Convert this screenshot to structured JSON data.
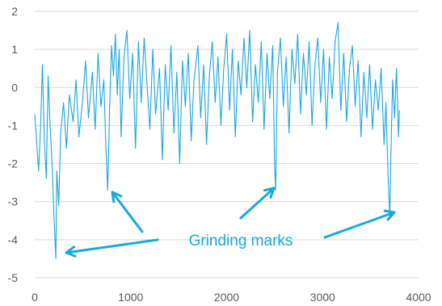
{
  "chart_data": {
    "type": "line",
    "title": "",
    "xlabel": "",
    "ylabel": "",
    "xlim": [
      0,
      4000
    ],
    "ylim": [
      -5,
      2
    ],
    "x_ticks": [
      0,
      1000,
      2000,
      3000,
      4000
    ],
    "y_ticks": [
      2,
      1,
      0,
      -1,
      -2,
      -3,
      -4,
      -5
    ],
    "x_tick_labels": [
      "0",
      "1000",
      "2000",
      "3000",
      "4000"
    ],
    "y_tick_labels": [
      "2",
      "1",
      "0",
      "-1",
      "-2",
      "-3",
      "-4",
      "-5"
    ],
    "grid": true,
    "legend": "none",
    "series": [
      {
        "color": "#1aa7dc",
        "points": [
          [
            0,
            -0.7
          ],
          [
            40,
            -2.2
          ],
          [
            60,
            -1.1
          ],
          [
            80,
            0.6
          ],
          [
            100,
            -1.4
          ],
          [
            120,
            -2.4
          ],
          [
            140,
            0.3
          ],
          [
            160,
            -1.0
          ],
          [
            180,
            -2.0
          ],
          [
            200,
            -3.4
          ],
          [
            220,
            -4.5
          ],
          [
            230,
            -2.2
          ],
          [
            250,
            -3.1
          ],
          [
            270,
            -1.2
          ],
          [
            300,
            -0.4
          ],
          [
            330,
            -1.6
          ],
          [
            360,
            -0.2
          ],
          [
            400,
            -0.9
          ],
          [
            430,
            0.2
          ],
          [
            460,
            -1.3
          ],
          [
            500,
            -0.3
          ],
          [
            530,
            0.7
          ],
          [
            560,
            -0.8
          ],
          [
            600,
            0.4
          ],
          [
            630,
            -1.1
          ],
          [
            660,
            0.9
          ],
          [
            690,
            -0.5
          ],
          [
            720,
            0.2
          ],
          [
            740,
            -1.5
          ],
          [
            760,
            -2.7
          ],
          [
            780,
            -0.6
          ],
          [
            800,
            1.1
          ],
          [
            820,
            0.3
          ],
          [
            840,
            1.4
          ],
          [
            860,
            -0.2
          ],
          [
            880,
            1.0
          ],
          [
            900,
            -1.3
          ],
          [
            930,
            0.8
          ],
          [
            960,
            1.5
          ],
          [
            990,
            -0.3
          ],
          [
            1020,
            0.9
          ],
          [
            1050,
            -1.6
          ],
          [
            1080,
            1.2
          ],
          [
            1110,
            -0.4
          ],
          [
            1140,
            1.3
          ],
          [
            1170,
            0.1
          ],
          [
            1200,
            -1.1
          ],
          [
            1230,
            1.0
          ],
          [
            1260,
            -0.7
          ],
          [
            1300,
            0.5
          ],
          [
            1330,
            -1.9
          ],
          [
            1360,
            0.6
          ],
          [
            1390,
            -0.6
          ],
          [
            1420,
            1.1
          ],
          [
            1450,
            -1.2
          ],
          [
            1480,
            0.4
          ],
          [
            1510,
            -2.0
          ],
          [
            1540,
            0.7
          ],
          [
            1570,
            -0.5
          ],
          [
            1600,
            0.9
          ],
          [
            1630,
            -1.4
          ],
          [
            1660,
            0.2
          ],
          [
            1700,
            1.1
          ],
          [
            1730,
            -0.8
          ],
          [
            1760,
            0.6
          ],
          [
            1790,
            -1.5
          ],
          [
            1820,
            0.3
          ],
          [
            1850,
            1.2
          ],
          [
            1880,
            -0.4
          ],
          [
            1910,
            0.8
          ],
          [
            1940,
            -1.0
          ],
          [
            1970,
            0.5
          ],
          [
            2000,
            1.4
          ],
          [
            2030,
            -0.6
          ],
          [
            2060,
            1.0
          ],
          [
            2090,
            -1.3
          ],
          [
            2120,
            0.7
          ],
          [
            2150,
            -0.2
          ],
          [
            2180,
            1.3
          ],
          [
            2210,
            0.0
          ],
          [
            2240,
            1.5
          ],
          [
            2270,
            -0.9
          ],
          [
            2300,
            0.6
          ],
          [
            2330,
            -0.4
          ],
          [
            2360,
            1.2
          ],
          [
            2390,
            -1.1
          ],
          [
            2420,
            0.9
          ],
          [
            2450,
            -0.3
          ],
          [
            2480,
            1.1
          ],
          [
            2500,
            -2.1
          ],
          [
            2510,
            -2.7
          ],
          [
            2530,
            0.4
          ],
          [
            2560,
            1.3
          ],
          [
            2590,
            -0.5
          ],
          [
            2620,
            0.8
          ],
          [
            2650,
            -1.2
          ],
          [
            2680,
            1.0
          ],
          [
            2710,
            0.1
          ],
          [
            2740,
            1.4
          ],
          [
            2770,
            -0.7
          ],
          [
            2800,
            0.9
          ],
          [
            2830,
            -0.2
          ],
          [
            2860,
            1.2
          ],
          [
            2890,
            -1.0
          ],
          [
            2920,
            0.6
          ],
          [
            2950,
            1.3
          ],
          [
            2980,
            -0.4
          ],
          [
            3010,
            1.0
          ],
          [
            3040,
            -1.1
          ],
          [
            3070,
            0.8
          ],
          [
            3100,
            -0.3
          ],
          [
            3130,
            1.2
          ],
          [
            3160,
            1.7
          ],
          [
            3190,
            -0.6
          ],
          [
            3220,
            0.9
          ],
          [
            3250,
            -0.9
          ],
          [
            3280,
            0.5
          ],
          [
            3310,
            1.1
          ],
          [
            3340,
            -0.5
          ],
          [
            3370,
            0.7
          ],
          [
            3400,
            -1.3
          ],
          [
            3430,
            0.4
          ],
          [
            3460,
            -0.8
          ],
          [
            3490,
            0.6
          ],
          [
            3520,
            -1.1
          ],
          [
            3550,
            0.2
          ],
          [
            3580,
            -0.6
          ],
          [
            3610,
            0.5
          ],
          [
            3640,
            -1.5
          ],
          [
            3660,
            -0.4
          ],
          [
            3680,
            -2.2
          ],
          [
            3700,
            -3.4
          ],
          [
            3710,
            -1.9
          ],
          [
            3730,
            0.2
          ],
          [
            3750,
            -0.8
          ],
          [
            3770,
            0.5
          ],
          [
            3790,
            -1.3
          ],
          [
            3800,
            -0.6
          ]
        ]
      }
    ],
    "annotation": {
      "text": "Grinding marks",
      "color": "#1aa7dc"
    }
  }
}
